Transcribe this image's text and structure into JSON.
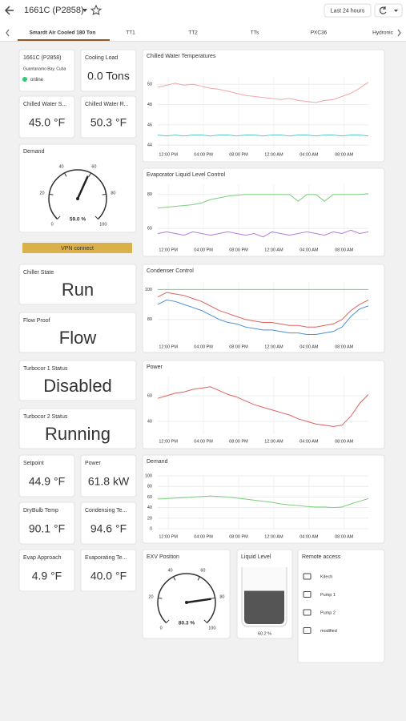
{
  "header": {
    "title": "1661C (P2858)",
    "time_range": "Last 24 hours"
  },
  "tabs": [
    "Smardt Air Cooled 180 Ton",
    "TT1",
    "TT2",
    "TTs",
    "PXC36",
    "Hydronic"
  ],
  "device": {
    "name": "1661C (P2858)",
    "location": "Guantanamo Bay, Cuba",
    "status": "online"
  },
  "tiles": [
    {
      "label": "Cooling Load",
      "value": "0.0 Tons"
    },
    {
      "label": "Chilled Water S...",
      "value": "45.0 °F"
    },
    {
      "label": "Chilled Water R...",
      "value": "50.3 °F"
    },
    {
      "label": "Chiller State",
      "value": "Run",
      "color": "#4caf50"
    },
    {
      "label": "Flow Proof",
      "value": "Flow",
      "color": "#4caf50"
    },
    {
      "label": "Turbocor 1 Status",
      "value": "Disabled",
      "color": "#e53935"
    },
    {
      "label": "Turbocor 2 Status",
      "value": "Running",
      "color": "#4caf50"
    },
    {
      "label": "Setpoint",
      "value": "44.9 °F"
    },
    {
      "label": "Power",
      "value": "61.8 kW"
    },
    {
      "label": "DryBulb Temp",
      "value": "90.1 °F"
    },
    {
      "label": "Condensing Te...",
      "value": "94.6 °F"
    },
    {
      "label": "Evap Approach",
      "value": "4.9 °F"
    },
    {
      "label": "Evaporating Te...",
      "value": "40.0 °F"
    }
  ],
  "vpn_button": "VPN connect",
  "gauges": [
    {
      "title": "Demand",
      "lim": [
        0,
        100
      ],
      "ticks": [
        0,
        20,
        40,
        60,
        80,
        100
      ],
      "value": 59.0,
      "value_label": "59.0 %"
    },
    {
      "title": "EXV Position",
      "lim": [
        0,
        100
      ],
      "ticks": [
        0,
        20,
        40,
        60,
        80,
        100
      ],
      "value": 80.3,
      "value_label": "80.3 %"
    }
  ],
  "liquid_level": {
    "title": "Liquid Level",
    "lim": [
      0,
      100
    ],
    "value": 60.2,
    "value_label": "60.2 %"
  },
  "remote_access": {
    "title": "Remote access",
    "items": [
      "Kitech",
      "Pump 1",
      "Pump 2",
      "modified"
    ]
  },
  "chart_data": [
    {
      "type": "line",
      "title": "Chilled Water Temperatures",
      "xtick_labels": [
        "12:00 PM",
        "04:00 PM",
        "08:00 PM",
        "12:00 AM",
        "04:00 AM",
        "08:00 AM"
      ],
      "ylim": [
        43.7,
        50.8
      ],
      "yticks": [
        44,
        46,
        48,
        50
      ],
      "grid": true,
      "series": [
        {
          "color": "#f4a6a6",
          "values": [
            49.7,
            49.9,
            50.1,
            49.9,
            50.0,
            49.8,
            49.6,
            49.5,
            49.3,
            49.1,
            48.9,
            48.8,
            48.7,
            48.6,
            48.5,
            48.6,
            48.4,
            48.3,
            48.2,
            48.4,
            48.5,
            48.8,
            49.1,
            49.6,
            50.2
          ]
        },
        {
          "color": "#5bc8c8",
          "values": [
            45.0,
            44.9,
            45.0,
            44.9,
            45.0,
            45.0,
            44.9,
            45.0,
            45.0,
            44.9,
            45.0,
            45.0,
            44.9,
            45.0,
            45.0,
            44.9,
            45.0,
            45.0,
            44.9,
            45.0,
            45.0,
            44.9,
            45.0,
            45.0,
            44.9
          ]
        }
      ]
    },
    {
      "type": "line",
      "title": "Evaporator Liquid Level Control",
      "xtick_labels": [
        "12:00 PM",
        "04:00 PM",
        "08:00 PM",
        "12:00 AM",
        "04:00 AM",
        "08:00 AM"
      ],
      "ylim": [
        53,
        86
      ],
      "yticks": [
        60,
        80
      ],
      "grid": true,
      "series": [
        {
          "color": "#7ccf7c",
          "values": [
            72,
            72.5,
            73,
            73.5,
            74,
            75,
            77,
            78,
            79,
            79.5,
            80,
            80,
            80,
            80,
            80,
            80,
            76,
            80,
            80,
            76,
            80,
            80,
            80,
            80,
            80.5
          ]
        },
        {
          "color": "#b57be0",
          "values": [
            57,
            58,
            57,
            56,
            58,
            57,
            56,
            57,
            58,
            57,
            56,
            57,
            55,
            58,
            57,
            56,
            57,
            58,
            57,
            56,
            58,
            57,
            59,
            57,
            58
          ]
        }
      ]
    },
    {
      "type": "line",
      "title": "Condenser Control",
      "xtick_labels": [
        "12:00 PM",
        "04:00 PM",
        "08:00 PM",
        "12:00 AM",
        "04:00 AM",
        "08:00 AM"
      ],
      "ylim": [
        66,
        105
      ],
      "yticks": [
        80,
        100
      ],
      "grid": true,
      "series": [
        {
          "color": "#7ccf7c",
          "values": [
            100,
            100,
            100,
            100,
            100,
            100,
            100,
            100,
            100,
            100,
            100,
            100,
            100,
            100,
            100,
            100,
            100,
            100,
            100,
            100,
            100,
            100,
            100,
            100,
            100
          ]
        },
        {
          "color": "#e06060",
          "values": [
            95,
            98,
            97,
            96,
            94,
            92,
            89,
            86,
            84,
            82,
            80,
            79,
            78,
            78,
            77,
            76,
            76,
            75,
            75,
            76,
            77,
            80,
            86,
            90,
            93
          ]
        },
        {
          "color": "#4a90d9",
          "values": [
            90,
            93,
            92,
            90,
            88,
            86,
            83,
            80,
            78,
            77,
            75,
            74,
            73,
            73,
            72,
            71,
            71,
            70,
            70,
            71,
            72,
            75,
            82,
            87,
            89
          ]
        }
      ]
    },
    {
      "type": "line",
      "title": "Power",
      "xtick_labels": [
        "12:00 PM",
        "04:00 PM",
        "08:00 PM",
        "12:00 AM",
        "04:00 AM",
        "08:00 AM"
      ],
      "ylim": [
        30,
        75
      ],
      "yticks": [
        40,
        60
      ],
      "grid": true,
      "series": [
        {
          "color": "#e06060",
          "values": [
            58,
            60,
            62,
            63,
            65,
            66,
            67,
            64,
            61,
            59,
            56,
            53,
            51,
            49,
            47,
            45,
            42,
            40,
            38,
            37,
            36,
            37,
            44,
            54,
            61
          ]
        }
      ]
    },
    {
      "type": "line",
      "title": "Demand",
      "xtick_labels": [
        "12:00 PM",
        "04:00 PM",
        "08:00 PM",
        "12:00 AM",
        "04:00 AM",
        "08:00 AM"
      ],
      "ylim": [
        0,
        100
      ],
      "yticks": [
        0,
        20,
        40,
        60,
        80,
        100
      ],
      "grid": true,
      "series": [
        {
          "color": "#7ccf7c",
          "values": [
            56,
            57,
            58,
            59,
            60,
            61,
            62,
            61,
            60,
            58,
            56,
            54,
            52,
            50,
            47,
            45,
            44,
            42,
            41,
            41,
            40,
            41,
            47,
            52,
            57
          ]
        }
      ]
    }
  ]
}
